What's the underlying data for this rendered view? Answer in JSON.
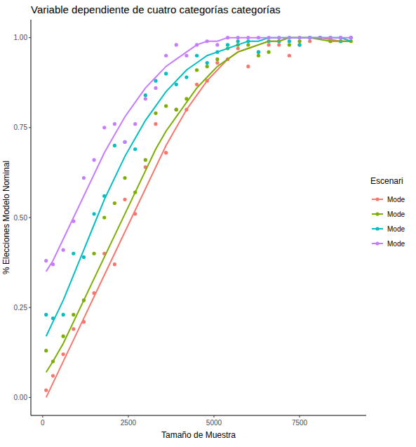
{
  "chart_data": {
    "type": "scatter",
    "title": "Variable dependiente de cuatro categorías categorías",
    "x_label": "Tamaño de Muestra",
    "y_label": "% Elecciones Modelo Nominal",
    "legend_title": "Escenari",
    "legend": "right",
    "grid": false,
    "marker": "circle",
    "line_style": "solid",
    "xlim": [
      -345,
      9445
    ],
    "xticks": [
      0,
      2500,
      5000,
      7500
    ],
    "ylim": [
      -0.05,
      1.05
    ],
    "yticks": [
      {
        "value": 0,
        "label": "0.00"
      },
      {
        "value": 0.25,
        "label": "0.25"
      },
      {
        "value": 0.5,
        "label": "0.50"
      },
      {
        "value": 0.75,
        "label": "0.75"
      },
      {
        "value": 1,
        "label": "1.00"
      }
    ],
    "x": [
      100,
      300,
      600,
      900,
      1200,
      1500,
      1800,
      2100,
      2400,
      2700,
      3000,
      3300,
      3600,
      3900,
      4200,
      4500,
      4800,
      5100,
      5400,
      5700,
      6000,
      6300,
      6600,
      6900,
      7200,
      7500,
      7800,
      8100,
      8400,
      8700,
      9000
    ],
    "series": [
      {
        "name": "Mode",
        "color": "#F8766D",
        "values": [
          0.02,
          0.06,
          0.12,
          0.19,
          0.21,
          0.29,
          0.4,
          0.37,
          0.55,
          0.51,
          0.64,
          0.76,
          0.68,
          0.8,
          0.8,
          0.87,
          0.88,
          0.93,
          0.94,
          0.97,
          0.92,
          0.96,
          0.98,
          0.98,
          0.95,
          0.98,
          0.99,
          1.0,
          0.99,
          1.0,
          1.0
        ],
        "fit": [
          0.0,
          0.04,
          0.1,
          0.16,
          0.22,
          0.28,
          0.34,
          0.4,
          0.46,
          0.52,
          0.58,
          0.64,
          0.7,
          0.75,
          0.8,
          0.84,
          0.88,
          0.91,
          0.94,
          0.96,
          0.97,
          0.98,
          0.99,
          0.99,
          1.0,
          1.0,
          1.0,
          1.0,
          0.995,
          0.99,
          0.99
        ]
      },
      {
        "name": "Mode",
        "color": "#7CAE00",
        "values": [
          0.13,
          0.1,
          0.17,
          0.23,
          0.27,
          0.4,
          0.5,
          0.54,
          0.61,
          0.57,
          0.66,
          0.79,
          0.81,
          0.8,
          0.83,
          0.91,
          0.92,
          0.94,
          0.97,
          0.98,
          0.98,
          0.95,
          0.96,
          0.99,
          0.98,
          0.99,
          1.0,
          1.0,
          0.99,
          0.99,
          0.99
        ],
        "fit": [
          0.07,
          0.1,
          0.15,
          0.21,
          0.27,
          0.33,
          0.39,
          0.45,
          0.51,
          0.57,
          0.63,
          0.69,
          0.74,
          0.78,
          0.82,
          0.86,
          0.89,
          0.92,
          0.94,
          0.96,
          0.97,
          0.98,
          0.99,
          0.99,
          1.0,
          1.0,
          1.0,
          0.995,
          0.99,
          0.99,
          0.99
        ]
      },
      {
        "name": "Mode",
        "color": "#00BFC4",
        "values": [
          0.23,
          0.22,
          0.23,
          0.4,
          0.39,
          0.51,
          0.56,
          0.7,
          0.71,
          0.69,
          0.84,
          0.88,
          0.9,
          0.87,
          0.89,
          0.95,
          0.93,
          0.96,
          0.98,
          0.99,
          0.99,
          0.96,
          0.99,
          0.99,
          0.99,
          0.98,
          1.0,
          1.0,
          1.0,
          0.99,
          1.0
        ],
        "fit": [
          0.17,
          0.21,
          0.27,
          0.34,
          0.41,
          0.48,
          0.55,
          0.61,
          0.67,
          0.72,
          0.77,
          0.81,
          0.85,
          0.88,
          0.91,
          0.93,
          0.95,
          0.96,
          0.97,
          0.98,
          0.99,
          0.99,
          1.0,
          1.0,
          1.0,
          1.0,
          1.0,
          1.0,
          1.0,
          1.0,
          0.99
        ]
      },
      {
        "name": "Mode",
        "color": "#C77CFF",
        "values": [
          0.38,
          0.37,
          0.41,
          0.49,
          0.61,
          0.66,
          0.75,
          0.76,
          0.71,
          0.76,
          0.83,
          0.86,
          0.95,
          0.98,
          0.95,
          0.98,
          0.99,
          0.98,
          1.0,
          1.0,
          1.0,
          1.0,
          1.0,
          1.0,
          1.0,
          1.0,
          1.0,
          1.0,
          1.0,
          1.0,
          1.0
        ],
        "fit": [
          0.35,
          0.38,
          0.44,
          0.5,
          0.56,
          0.62,
          0.68,
          0.73,
          0.78,
          0.82,
          0.86,
          0.89,
          0.92,
          0.94,
          0.96,
          0.98,
          0.99,
          0.99,
          1.0,
          1.0,
          1.0,
          1.0,
          1.0,
          1.0,
          1.0,
          1.0,
          1.0,
          1.0,
          1.0,
          1.0,
          1.0
        ]
      }
    ]
  }
}
